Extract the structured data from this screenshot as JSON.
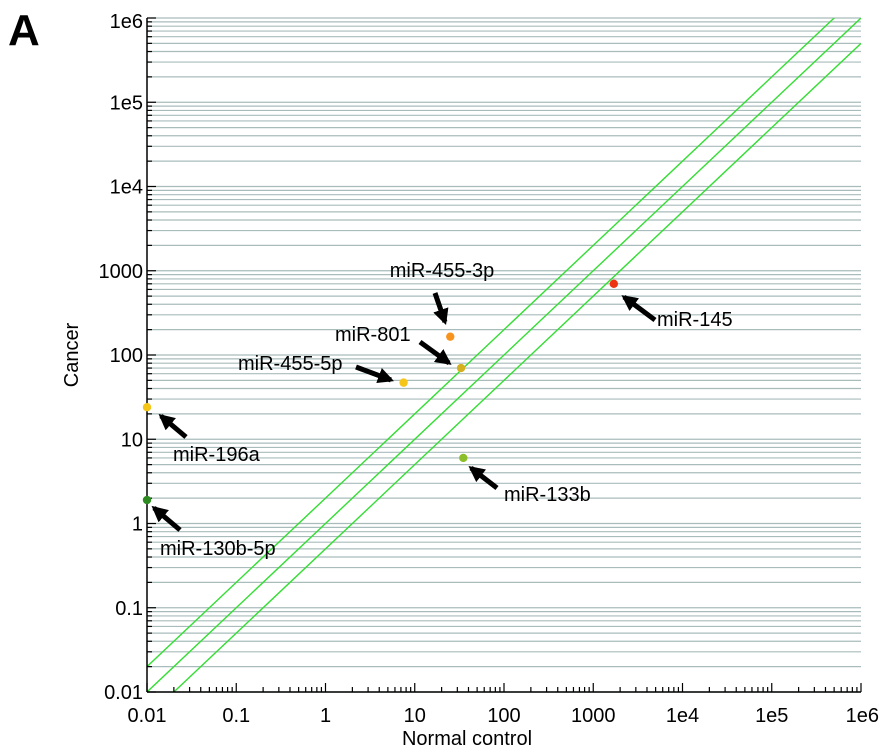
{
  "panel_label": "A",
  "chart_data": {
    "type": "scatter",
    "xlabel": "Normal control",
    "ylabel": "Cancer",
    "xscale": "log",
    "yscale": "log",
    "xlim": [
      0.01,
      1000000
    ],
    "ylim": [
      0.01,
      1000000
    ],
    "grid": "horizontal minor log gridlines",
    "x_ticks": [
      "0.01",
      "0.1",
      "1",
      "10",
      "100",
      "1000",
      "1e4",
      "1e5",
      "1e6"
    ],
    "y_ticks": [
      "0.01",
      "0.1",
      "1",
      "10",
      "100",
      "1000",
      "1e4",
      "1e5",
      "1e6"
    ],
    "reference_lines": [
      {
        "label": "",
        "fold_change": 2,
        "color": "#33dd33"
      },
      {
        "label": "",
        "fold_change": 1,
        "color": "#33dd33"
      },
      {
        "label": "",
        "fold_change": 0.5,
        "color": "#33dd33"
      }
    ],
    "points": [
      {
        "label": "miR-145",
        "x": 1700,
        "y": 700,
        "color": "#ee3311"
      },
      {
        "label": "miR-455-3p",
        "x": 25,
        "y": 165,
        "color": "#f7941d"
      },
      {
        "label": "miR-801",
        "x": 33,
        "y": 70,
        "color": "#d4b020"
      },
      {
        "label": "miR-455-5p",
        "x": 7.5,
        "y": 47,
        "color": "#f5c518"
      },
      {
        "label": "miR-196a",
        "x": 0.01,
        "y": 24,
        "color": "#f5c518"
      },
      {
        "label": "miR-133b",
        "x": 35,
        "y": 6,
        "color": "#8cbd2a"
      },
      {
        "label": "miR-130b-5p",
        "x": 0.01,
        "y": 1.9,
        "color": "#2e8b22"
      }
    ]
  }
}
